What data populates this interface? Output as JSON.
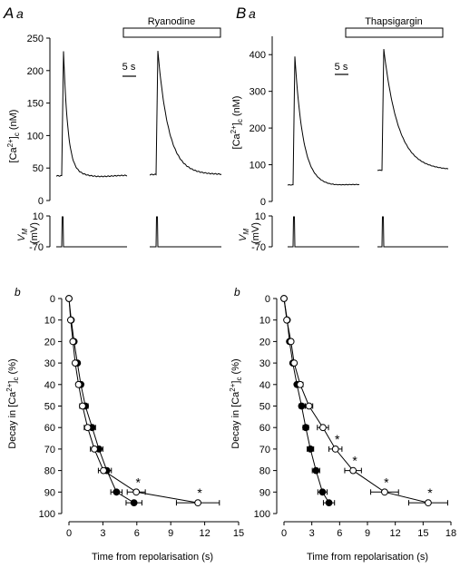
{
  "panels": {
    "A": {
      "letter": "A",
      "sub": "a",
      "drug": "Ryanodine",
      "scale": "5 s",
      "b_label": "b"
    },
    "B": {
      "letter": "B",
      "sub": "a",
      "drug": "Thapsigargin",
      "scale": "5 s",
      "b_label": "b"
    }
  },
  "labels": {
    "ca_ylabel_main": "[Ca",
    "ca_ylabel_sup": "2+",
    "ca_ylabel_close": "]",
    "ca_ylabel_sub": "c",
    "ca_ylabel_unit": " (nM)",
    "vm_ylabel_main": "V",
    "vm_ylabel_sub": "M",
    "vm_ylabel_unit": "(mV)",
    "decay_ylabel_main": "Decay in [Ca",
    "decay_ylabel_sup": "2+",
    "decay_ylabel_close": "]",
    "decay_ylabel_sub": "c",
    "decay_ylabel_unit": " (%)",
    "xlabel": "Time from repolarisation (s)",
    "sig": "*"
  },
  "colors": {
    "ink": "#000000",
    "control_marker": "#000000",
    "drug_marker": "#ffffff"
  },
  "chart_data": [
    {
      "type": "line",
      "panel": "Aa-calcium",
      "ylabel": "[Ca2+]c (nM)",
      "ylim": [
        0,
        250
      ],
      "yticks": [
        0,
        50,
        100,
        150,
        200,
        250
      ],
      "series": [
        {
          "peak": 230,
          "baseline": 38
        },
        {
          "name": "Ryanodine",
          "peak": 230,
          "baseline": 40
        }
      ]
    },
    {
      "type": "line",
      "panel": "Aa-voltage",
      "ylabel": "VM (mV)",
      "yticks": [
        10,
        -70
      ]
    },
    {
      "type": "line",
      "panel": "Ba-calcium",
      "ylabel": "[Ca2+]c (nM)",
      "ylim": [
        0,
        450
      ],
      "yticks": [
        0,
        100,
        200,
        300,
        400
      ],
      "series": [
        {
          "peak": 395,
          "baseline": 45
        },
        {
          "name": "Thapsigargin",
          "peak": 415,
          "baseline": 85
        }
      ]
    },
    {
      "type": "line",
      "panel": "Ba-voltage",
      "ylabel": "VM (mV)",
      "yticks": [
        10,
        -70
      ]
    },
    {
      "type": "scatter",
      "panel": "Ab",
      "xlabel": "Time from repolarisation (s)",
      "ylabel": "Decay in [Ca2+]c (%)",
      "xlim": [
        0,
        15
      ],
      "ylim": [
        0,
        100
      ],
      "y_inverted": true,
      "xticks": [
        0,
        3,
        6,
        9,
        12,
        15
      ],
      "yticks": [
        0,
        10,
        20,
        30,
        40,
        50,
        60,
        70,
        80,
        90,
        100
      ],
      "series": [
        {
          "marker": "filled",
          "x": [
            0,
            0.2,
            0.45,
            0.75,
            1.05,
            1.45,
            2.05,
            2.65,
            3.35,
            4.2,
            5.75
          ],
          "y": [
            0,
            10,
            20,
            30,
            40,
            50,
            60,
            70,
            80,
            90,
            95
          ],
          "err": [
            0,
            0.1,
            0.12,
            0.15,
            0.2,
            0.25,
            0.3,
            0.35,
            0.4,
            0.5,
            0.7
          ]
        },
        {
          "marker": "open",
          "x": [
            0,
            0.15,
            0.35,
            0.55,
            0.85,
            1.2,
            1.65,
            2.25,
            3.05,
            5.95,
            11.4
          ],
          "y": [
            0,
            10,
            20,
            30,
            40,
            50,
            60,
            70,
            80,
            90,
            95
          ],
          "err": [
            0,
            0.1,
            0.12,
            0.15,
            0.2,
            0.25,
            0.3,
            0.35,
            0.45,
            0.8,
            1.9
          ],
          "sig": [
            false,
            false,
            false,
            false,
            false,
            false,
            false,
            false,
            false,
            true,
            true
          ]
        }
      ]
    },
    {
      "type": "scatter",
      "panel": "Bb",
      "xlabel": "Time from repolarisation (s)",
      "ylabel": "Decay in [Ca2+]c (%)",
      "xlim": [
        0,
        18
      ],
      "ylim": [
        0,
        100
      ],
      "y_inverted": true,
      "xticks": [
        0,
        3,
        6,
        9,
        12,
        15,
        18
      ],
      "yticks": [
        0,
        10,
        20,
        30,
        40,
        50,
        60,
        70,
        80,
        90,
        100
      ],
      "series": [
        {
          "marker": "filled",
          "x": [
            0,
            0.35,
            0.6,
            0.95,
            1.4,
            1.9,
            2.35,
            2.85,
            3.45,
            4.15,
            4.85
          ],
          "y": [
            0,
            10,
            20,
            30,
            40,
            50,
            60,
            70,
            80,
            90,
            95
          ],
          "err": [
            0,
            0.1,
            0.12,
            0.15,
            0.2,
            0.25,
            0.3,
            0.35,
            0.4,
            0.5,
            0.6
          ]
        },
        {
          "marker": "open",
          "x": [
            0,
            0.3,
            0.75,
            1.1,
            1.75,
            2.7,
            4.2,
            5.55,
            7.45,
            10.85,
            15.55
          ],
          "y": [
            0,
            10,
            20,
            30,
            40,
            50,
            60,
            70,
            80,
            90,
            95
          ],
          "err": [
            0,
            0.1,
            0.15,
            0.2,
            0.3,
            0.4,
            0.6,
            0.7,
            0.9,
            1.5,
            2.1
          ],
          "sig": [
            false,
            false,
            false,
            false,
            false,
            false,
            false,
            true,
            true,
            true,
            true
          ]
        }
      ]
    }
  ]
}
